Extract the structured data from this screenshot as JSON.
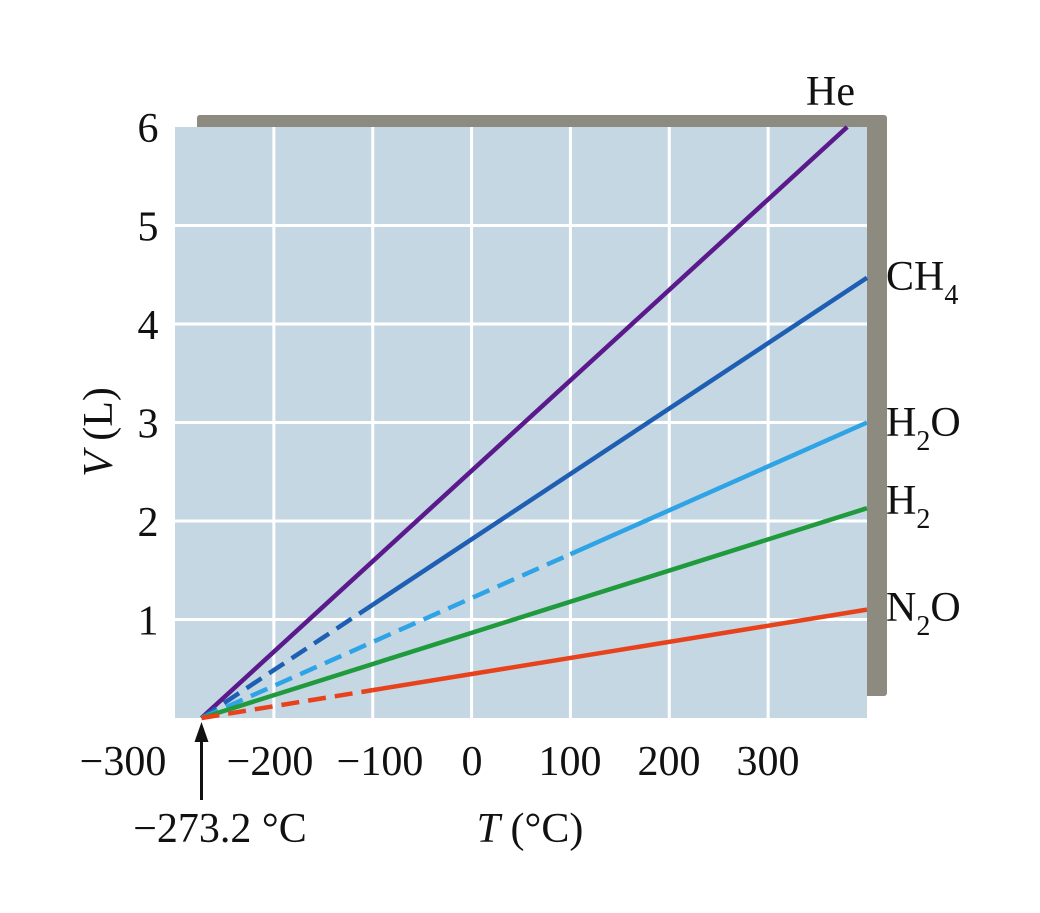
{
  "chart_data": {
    "type": "line",
    "xlabel_var": "T",
    "xlabel_unit": " (°C)",
    "ylabel_var": "V",
    "ylabel_unit": " (L)",
    "xlim": [
      -300,
      400
    ],
    "ylim": [
      0,
      6
    ],
    "x_ticks": [
      -300,
      -200,
      -100,
      0,
      100,
      200,
      300
    ],
    "x_tick_labels": [
      "−300",
      "−200",
      "−100",
      "0",
      "100",
      "200",
      "300"
    ],
    "y_ticks": [
      1,
      2,
      3,
      4,
      5,
      6
    ],
    "y_tick_labels": [
      "1",
      "2",
      "3",
      "4",
      "5",
      "6"
    ],
    "grid": true,
    "annotation": "−273.2 °C",
    "annotation_x": -273.2,
    "series": [
      {
        "name": "He",
        "formula": "He",
        "sub": "",
        "suffix": "",
        "color": "#5b1a8c",
        "x": [
          -273.2,
          380
        ],
        "y": [
          0,
          6.0
        ],
        "dashed_until_x": null
      },
      {
        "name": "CH4",
        "formula": "CH",
        "sub": "4",
        "suffix": "",
        "color": "#1f5fb3",
        "x": [
          -273.2,
          400
        ],
        "y": [
          0,
          4.47
        ],
        "dashed_until_x": -100
      },
      {
        "name": "H2O",
        "formula": "H",
        "sub": "2",
        "suffix": "O",
        "color": "#2ea3e6",
        "x": [
          -273.2,
          400
        ],
        "y": [
          0,
          3.0
        ],
        "dashed_until_x": 100
      },
      {
        "name": "H2",
        "formula": "H",
        "sub": "2",
        "suffix": "",
        "color": "#1f9a3c",
        "x": [
          -273.2,
          400
        ],
        "y": [
          0,
          2.13
        ],
        "dashed_until_x": null
      },
      {
        "name": "N2O",
        "formula": "N",
        "sub": "2",
        "suffix": "O",
        "color": "#e8421c",
        "x": [
          -273.2,
          400
        ],
        "y": [
          0,
          1.1
        ],
        "dashed_until_x": -100
      }
    ]
  }
}
